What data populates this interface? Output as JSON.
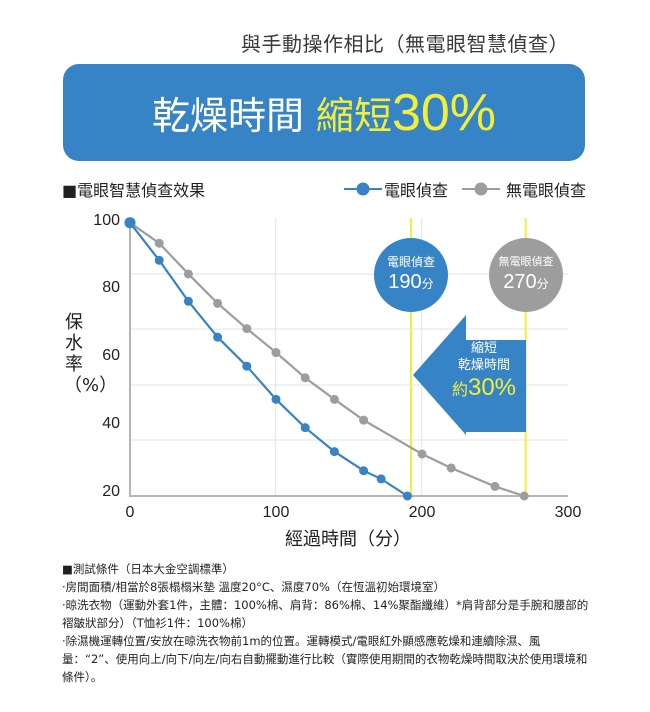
{
  "header": {
    "subtitle": "與手動操作相比（無電眼智慧偵查）",
    "banner_white": "乾燥時間",
    "banner_yellow": "縮短",
    "banner_pct": "30%"
  },
  "chart_header": {
    "title": "■電眼智慧偵查效果",
    "legend": [
      {
        "label": "電眼偵查",
        "color": "#3683c5"
      },
      {
        "label": "無電眼偵查",
        "color": "#9d9d9d"
      }
    ]
  },
  "callouts": {
    "with_sensor": {
      "label": "電眼偵查",
      "value": "190",
      "unit": "分",
      "color": "#3683c5"
    },
    "without_sensor": {
      "label": "無電眼偵查",
      "value": "270",
      "unit": "分",
      "color": "#9d9d9d"
    },
    "arrow": {
      "line1": "縮短",
      "line2": "乾燥時間",
      "prefix": "約",
      "pct": "30%"
    }
  },
  "axes": {
    "ylabel": "保水率（%）",
    "xlabel": "經過時間（分）",
    "yticks": [
      "100",
      "80",
      "60",
      "40",
      "20"
    ],
    "xticks": [
      "0",
      "100",
      "200",
      "300"
    ]
  },
  "chart_data": {
    "type": "line",
    "title": "電眼智慧偵查效果",
    "xlabel": "經過時間（分）",
    "ylabel": "保水率（%）",
    "xlim": [
      0,
      300
    ],
    "ylim": [
      20,
      100
    ],
    "xticks": [
      0,
      100,
      200,
      300
    ],
    "yticks": [
      20,
      40,
      60,
      80,
      100
    ],
    "grid": true,
    "legend_position": "top-right",
    "series": [
      {
        "name": "電眼偵查",
        "color": "#3683c5",
        "x": [
          0,
          20,
          40,
          60,
          80,
          100,
          120,
          140,
          160,
          172,
          190
        ],
        "y": [
          100,
          89,
          77,
          66.5,
          58,
          48.3,
          40,
          33,
          27.4,
          25,
          20
        ]
      },
      {
        "name": "無電眼偵查",
        "color": "#9d9d9d",
        "x": [
          0,
          20,
          40,
          60,
          80,
          100,
          120,
          140,
          160,
          200,
          220,
          250,
          270
        ],
        "y": [
          100,
          94,
          85,
          76.4,
          69,
          62,
          54.6,
          48.3,
          42.2,
          32.3,
          28.2,
          22.8,
          20
        ]
      }
    ],
    "annotations": [
      {
        "text": "電眼偵查 190分",
        "x": 190
      },
      {
        "text": "無電眼偵查 270分",
        "x": 270
      },
      {
        "text": "縮短 乾燥時間 約30%"
      }
    ]
  },
  "notes": [
    "■測試條件（日本大金空調標準）",
    "‧房間面積/相當於8張榻榻米墊 溫度20°C、濕度70%（在恆溫初始環境室）",
    "‧晾洗衣物（運動外套1件，主體：100%棉、肩背：86%棉、14%聚酯纖維）*肩背部分是手腕和腰部的褶皺狀部分）（T恤衫1件：100%棉）",
    "‧除濕機運轉位置/安放在晾洗衣物前1m的位置。運轉模式/電眼紅外顯感應乾燥和連續除濕、風量：“2”、使用向上/向下/向左/向右自動擺動進行比較（實際使用期間的衣物乾燥時間取決於使用環境和條件）。"
  ]
}
